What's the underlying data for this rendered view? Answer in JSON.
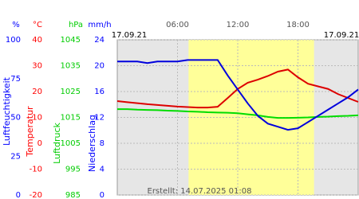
{
  "chart_data": {
    "type": "line",
    "date_left": "17.09.21",
    "date_right": "17.09.21",
    "footer": "Erstellt: 14.07.2025 01:08",
    "x": [
      0,
      1,
      2,
      3,
      4,
      5,
      6,
      7,
      8,
      9,
      10,
      11,
      12,
      13,
      14,
      15,
      16,
      17,
      18,
      19,
      20,
      21,
      22,
      23,
      24
    ],
    "xlim": [
      0,
      24
    ],
    "xticks": [
      {
        "value": 6,
        "label": "06:00"
      },
      {
        "value": 12,
        "label": "12:00"
      },
      {
        "value": 18,
        "label": "18:00"
      }
    ],
    "daylight": [
      7.1,
      19.6
    ],
    "axes": [
      {
        "unit": "%",
        "label": "Luftfeuchtigkeit",
        "color": "#0000ff",
        "lim": [
          0,
          100
        ],
        "ticks": [
          100,
          75,
          50,
          25,
          0
        ]
      },
      {
        "unit": "°C",
        "label": "Temperatur",
        "color": "#ff0000",
        "lim": [
          -20,
          40
        ],
        "ticks": [
          40,
          30,
          20,
          10,
          0,
          -10,
          -20
        ]
      },
      {
        "unit": "hPa",
        "label": "Luftdruck",
        "color": "#00cc00",
        "lim": [
          985,
          1045
        ],
        "ticks": [
          1045,
          1035,
          1025,
          1015,
          1005,
          995,
          985
        ]
      },
      {
        "unit": "mm/h",
        "label": "Niederschlag",
        "color": "#0000ff",
        "lim": [
          0,
          24
        ],
        "ticks": [
          24,
          20,
          16,
          12,
          8,
          4,
          0
        ]
      }
    ],
    "series": [
      {
        "axis": 1,
        "color": "#dd0000",
        "values": [
          16.3,
          15.9,
          15.5,
          15.1,
          14.8,
          14.5,
          14.2,
          14.0,
          13.8,
          13.8,
          14.1,
          17.5,
          21,
          23.4,
          24.6,
          26,
          27.7,
          28.5,
          25.5,
          23,
          22,
          21,
          19,
          17.5,
          16
        ]
      },
      {
        "axis": 2,
        "color": "#00dd00",
        "values": [
          1018.2,
          1018.2,
          1018,
          1017.9,
          1017.8,
          1017.6,
          1017.5,
          1017.3,
          1017.2,
          1017,
          1016.9,
          1016.8,
          1016.6,
          1016.2,
          1015.8,
          1015.2,
          1014.8,
          1014.8,
          1014.9,
          1015,
          1015.2,
          1015.3,
          1015.5,
          1015.6,
          1015.8
        ]
      },
      {
        "axis": 0,
        "color": "#0000dd",
        "values": [
          86,
          86,
          86,
          85,
          86,
          86,
          86,
          87,
          87,
          87,
          87,
          77,
          68,
          59,
          51,
          46,
          44,
          42,
          43,
          47,
          51,
          55,
          59,
          63,
          68
        ]
      }
    ]
  }
}
